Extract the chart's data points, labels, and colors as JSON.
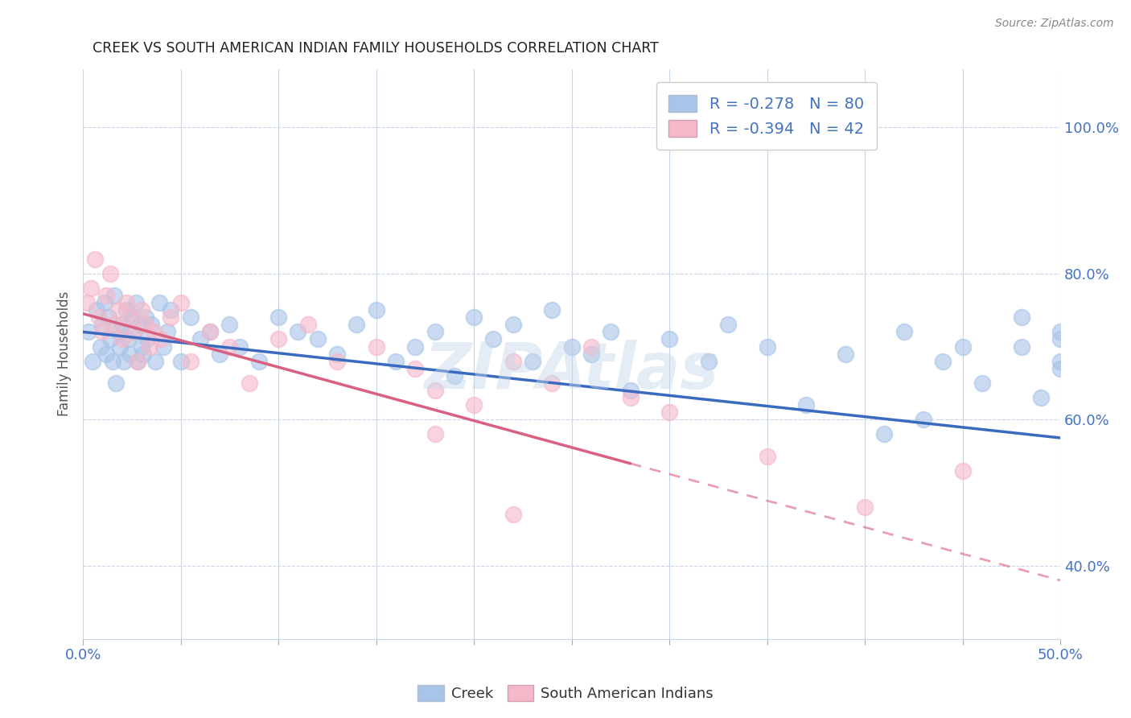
{
  "title": "CREEK VS SOUTH AMERICAN INDIAN FAMILY HOUSEHOLDS CORRELATION CHART",
  "source": "Source: ZipAtlas.com",
  "ylabel": "Family Households",
  "creek_R": "-0.278",
  "creek_N": "80",
  "sa_R": "-0.394",
  "sa_N": "42",
  "legend_creek": "Creek",
  "legend_sa": "South American Indians",
  "creek_color": "#a8c4e8",
  "sa_color": "#f5b8c8",
  "creek_line_color": "#3a6abf",
  "sa_line_color": "#d96080",
  "watermark": "ZIPAtlas",
  "xlim": [
    0,
    50
  ],
  "ylim": [
    30,
    108
  ],
  "creek_line_x0": 0,
  "creek_line_x1": 50,
  "creek_line_y0": 72.0,
  "creek_line_y1": 57.5,
  "sa_line_x0": 0,
  "sa_line_x1": 28,
  "sa_line_y0": 74.5,
  "sa_line_y1": 54.0,
  "sa_dash_x0": 28,
  "sa_dash_x1": 50,
  "sa_dash_y0": 54.0,
  "sa_dash_y1": 38.0,
  "creek_pts_x": [
    0.3,
    0.5,
    0.7,
    0.9,
    1.0,
    1.1,
    1.2,
    1.3,
    1.4,
    1.5,
    1.6,
    1.7,
    1.8,
    1.9,
    2.0,
    2.1,
    2.2,
    2.3,
    2.4,
    2.5,
    2.6,
    2.7,
    2.8,
    2.9,
    3.0,
    3.1,
    3.2,
    3.3,
    3.5,
    3.7,
    3.9,
    4.1,
    4.3,
    4.5,
    5.0,
    5.5,
    6.0,
    6.5,
    7.0,
    7.5,
    8.0,
    9.0,
    10.0,
    11.0,
    12.0,
    13.0,
    14.0,
    15.0,
    16.0,
    17.0,
    18.0,
    19.0,
    20.0,
    21.0,
    22.0,
    23.0,
    24.0,
    25.0,
    26.0,
    27.0,
    28.0,
    30.0,
    32.0,
    33.0,
    35.0,
    37.0,
    39.0,
    42.0,
    44.0,
    46.0,
    48.0,
    49.0,
    50.0,
    50.0,
    50.0,
    50.0,
    48.0,
    45.0,
    43.0,
    41.0
  ],
  "creek_pts_y": [
    72,
    68,
    75,
    70,
    73,
    76,
    69,
    74,
    71,
    68,
    77,
    65,
    72,
    70,
    73,
    68,
    75,
    71,
    69,
    74,
    72,
    76,
    68,
    73,
    70,
    69,
    74,
    71,
    73,
    68,
    76,
    70,
    72,
    75,
    68,
    74,
    71,
    72,
    69,
    73,
    70,
    68,
    74,
    72,
    71,
    69,
    73,
    75,
    68,
    70,
    72,
    66,
    74,
    71,
    73,
    68,
    75,
    70,
    69,
    72,
    64,
    71,
    68,
    73,
    70,
    62,
    69,
    72,
    68,
    65,
    70,
    63,
    67,
    71,
    72,
    68,
    74,
    70,
    60,
    58
  ],
  "sa_pts_x": [
    0.2,
    0.4,
    0.6,
    0.8,
    1.0,
    1.2,
    1.4,
    1.6,
    1.8,
    2.0,
    2.2,
    2.4,
    2.6,
    2.8,
    3.0,
    3.2,
    3.4,
    3.6,
    4.0,
    4.5,
    5.0,
    5.5,
    6.5,
    7.5,
    8.5,
    10.0,
    11.5,
    13.0,
    15.0,
    17.0,
    18.0,
    20.0,
    22.0,
    24.0,
    26.0,
    28.0,
    30.0,
    35.0,
    40.0,
    45.0,
    22.0,
    18.0
  ],
  "sa_pts_y": [
    76,
    78,
    82,
    74,
    72,
    77,
    80,
    73,
    75,
    71,
    76,
    74,
    72,
    68,
    75,
    73,
    70,
    72,
    71,
    74,
    76,
    68,
    72,
    70,
    65,
    71,
    73,
    68,
    70,
    67,
    64,
    62,
    68,
    65,
    70,
    63,
    61,
    55,
    48,
    53,
    47,
    58
  ]
}
